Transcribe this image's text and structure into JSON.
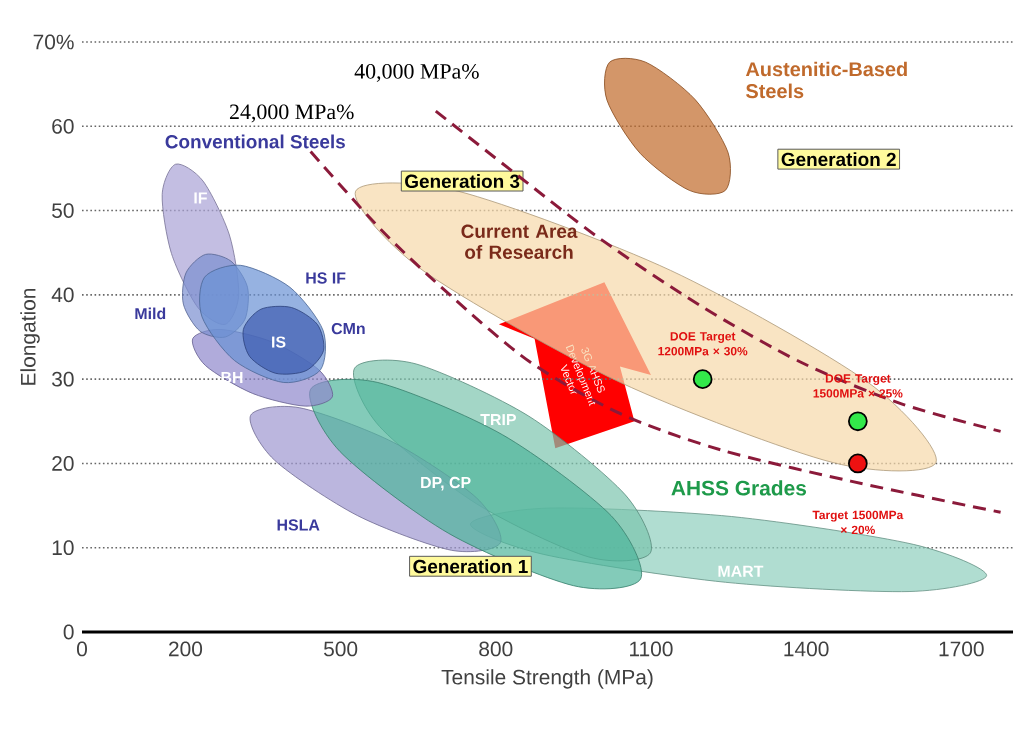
{
  "chart_data": {
    "type": "scatter",
    "xlabel": "Tensile Strength (MPa)",
    "ylabel": "Elongation",
    "xlim": [
      0,
      1800
    ],
    "ylim": [
      0,
      70
    ],
    "xticks": [
      0,
      200,
      500,
      800,
      1100,
      1400,
      1700
    ],
    "yticks": [
      0,
      10,
      20,
      30,
      40,
      50,
      60,
      {
        "value": 70,
        "label": "70%"
      }
    ],
    "grid": "y",
    "series": [
      {
        "type": "area",
        "color": "#f6d9aa",
        "x": [
          1651,
          1452,
          1041,
          659,
          529,
          727,
          1138,
          1520
        ],
        "values": [
          20.1,
          20.1,
          29.6,
          42.9,
          52.3,
          52.3,
          42.9,
          29.6
        ]
      },
      {
        "type": "area",
        "color": "#c0692a",
        "x": [
          1244,
          1174,
          1079,
          1015,
          1020,
          1090,
          1185,
          1249
        ],
        "values": [
          52.4,
          52.4,
          56.8,
          63.1,
          67.6,
          67.6,
          63.2,
          56.9
        ]
      },
      {
        "type": "area",
        "color": "#8fcfbd",
        "x": [
          1749,
          1599,
          1244,
          893,
          751,
          901,
          1256,
          1607
        ],
        "values": [
          6.7,
          4.8,
          5.9,
          9.2,
          12.8,
          14.7,
          13.7,
          10.4
        ]
      },
      {
        "type": "area",
        "color": "#7cc4ae",
        "x": [
          1099,
          980,
          763,
          575,
          527,
          646,
          864,
          1050
        ],
        "values": [
          9.4,
          8.9,
          15.2,
          24.4,
          31.3,
          31.8,
          25.6,
          16.3
        ]
      },
      {
        "type": "area",
        "color": "#9e97d0",
        "x": [
          809,
          714,
          533,
          372,
          326,
          421,
          602,
          763
        ],
        "values": [
          10.6,
          9.7,
          13.8,
          20.4,
          25.7,
          26.6,
          22.5,
          15.9
        ]
      },
      {
        "type": "area",
        "color": "#4fb59b",
        "x": [
          1080,
          950,
          709,
          499,
          442,
          572,
          813,
          1023
        ],
        "values": [
          6.3,
          5.5,
          11.7,
          21.4,
          28.8,
          29.6,
          23.4,
          13.8
        ]
      },
      {
        "type": "area",
        "color": "#8f87cc",
        "x": [
          484,
          431,
          330,
          239,
          214,
          267,
          368,
          458
        ],
        "values": [
          27.9,
          26.8,
          28.3,
          31.6,
          34.8,
          35.9,
          34.4,
          31.1
        ]
      },
      {
        "type": "area",
        "color": "#aaa3d6",
        "x": [
          181,
          234,
          285,
          303,
          277,
          224,
          173,
          155
        ],
        "values": [
          55.5,
          53.5,
          47.1,
          40.0,
          36.5,
          38.5,
          44.9,
          51.9
        ]
      },
      {
        "type": "area",
        "color": "#7b8fd0",
        "x": [
          239,
          288,
          320,
          315,
          277,
          228,
          196,
          201
        ],
        "values": [
          44.8,
          44.0,
          40.9,
          37.1,
          35.0,
          35.7,
          38.9,
          42.6
        ]
      },
      {
        "type": "area",
        "color": "#6a92d4",
        "x": [
          461,
          390,
          295,
          232,
          237,
          307,
          402,
          466
        ],
        "values": [
          31.1,
          29.6,
          32.2,
          37.4,
          42.1,
          43.5,
          40.9,
          35.8
        ]
      },
      {
        "type": "area",
        "color": "#3f5db0",
        "x": [
          467,
          433,
          374,
          324,
          312,
          346,
          405,
          455
        ],
        "values": [
          33.4,
          31.0,
          30.7,
          32.7,
          35.9,
          38.3,
          38.5,
          36.5
        ]
      },
      {
        "type": "line",
        "name": "40,000 MPa%",
        "color": "#8b1a3a",
        "line_style": "dashed",
        "x": [
          684,
          848,
          1003,
          1196,
          1390,
          1583,
          1776
        ],
        "values": [
          61.8,
          53.9,
          46.6,
          38.7,
          32.0,
          27.1,
          23.8
        ]
      },
      {
        "type": "line",
        "name": "24,000 MPa%",
        "color": "#8b1a3a",
        "line_style": "dashed",
        "x": [
          442,
          577,
          713,
          867,
          1041,
          1235,
          1486,
          1776
        ],
        "values": [
          57.0,
          47.8,
          39.9,
          32.0,
          25.9,
          21.6,
          17.9,
          14.2
        ]
      },
      {
        "marker": "circle",
        "colors": [
          "#33e84a",
          "#33e84a",
          "#ee1111"
        ],
        "x": [
          1200,
          1500,
          1500
        ],
        "values": [
          30,
          25,
          20
        ]
      }
    ],
    "annotations": [
      "Generation 1",
      "Generation 2",
      "Generation 3",
      "Conventional Steels",
      "AHSS Grades",
      "Austenitic-Based Steels",
      "IF",
      "HS IF",
      "Mild",
      "IS",
      "CMn",
      "BH",
      "HSLA",
      "DP, CP",
      "TRIP",
      "MART",
      "Current Area of Research",
      "3G AHSS Development Vector",
      "DOE Target 1200MPa × 30%",
      "DOE Target 1500MPa × 25%",
      "Target 1500MPa × 20%"
    ]
  }
}
